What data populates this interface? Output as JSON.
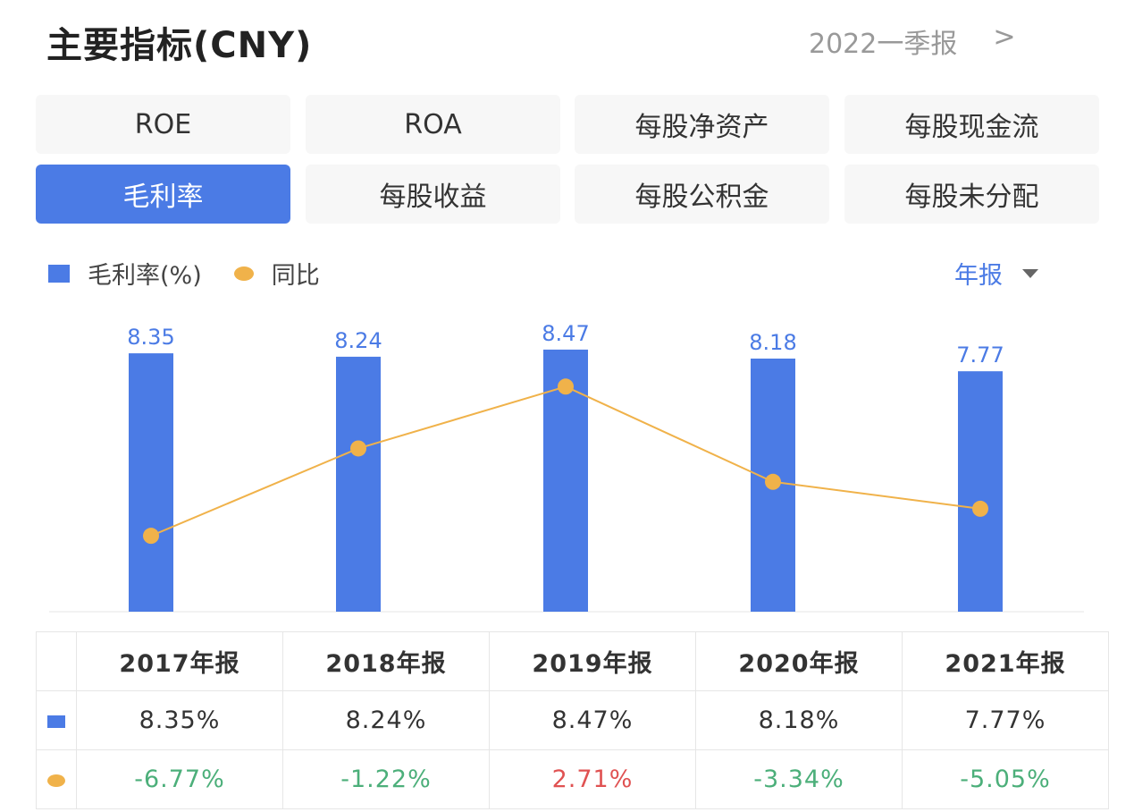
{
  "header": {
    "title": "主要指标(CNY)",
    "period": "2022一季报",
    "chevron": ">"
  },
  "tabs": [
    {
      "label": "ROE",
      "active": false
    },
    {
      "label": "ROA",
      "active": false
    },
    {
      "label": "每股净资产",
      "active": false
    },
    {
      "label": "每股现金流",
      "active": false
    },
    {
      "label": "毛利率",
      "active": true
    },
    {
      "label": "每股收益",
      "active": false
    },
    {
      "label": "每股公积金",
      "active": false
    },
    {
      "label": "每股未分配",
      "active": false
    }
  ],
  "legend": {
    "bar": "毛利率(%)",
    "line": "同比",
    "selector": "年报"
  },
  "colors": {
    "bar": "#4b7be5",
    "line": "#f0b24a",
    "negative": "#4caf7a",
    "positive": "#e05252"
  },
  "chart_data": {
    "type": "bar+line",
    "categories": [
      "2017年报",
      "2018年报",
      "2019年报",
      "2020年报",
      "2021年报"
    ],
    "series": [
      {
        "name": "毛利率(%)",
        "type": "bar",
        "values": [
          8.35,
          8.24,
          8.47,
          8.18,
          7.77
        ],
        "labels": [
          "8.35",
          "8.24",
          "8.47",
          "8.18",
          "7.77"
        ]
      },
      {
        "name": "同比",
        "type": "line",
        "values": [
          -6.77,
          -1.22,
          2.71,
          -3.34,
          -5.05
        ]
      }
    ],
    "grid": false,
    "legend": "top-left"
  },
  "table": {
    "headers": [
      "2017年报",
      "2018年报",
      "2019年报",
      "2020年报",
      "2021年报"
    ],
    "bar_row": [
      "8.35%",
      "8.24%",
      "8.47%",
      "8.18%",
      "7.77%"
    ],
    "line_row": [
      "-6.77%",
      "-1.22%",
      "2.71%",
      "-3.34%",
      "-5.05%"
    ]
  }
}
